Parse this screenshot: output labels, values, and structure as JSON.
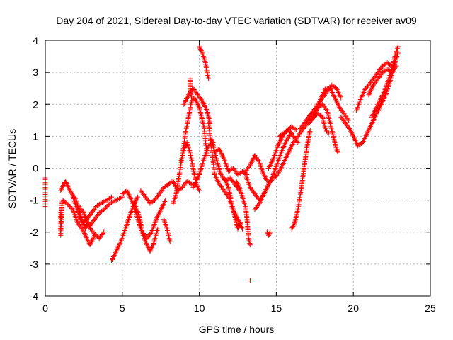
{
  "chart_data": {
    "type": "scatter",
    "title": "Day 204 of 2021, Sidereal Day-to-day VTEC variation (SDTVAR) for receiver av09",
    "xlabel": "GPS time / hours",
    "ylabel": "SDTVAR / TECUs",
    "xlim": [
      0,
      25
    ],
    "ylim": [
      -4,
      4
    ],
    "x_ticks": [
      0,
      5,
      10,
      15,
      20,
      25
    ],
    "y_ticks": [
      -4,
      -3,
      -2,
      -1,
      0,
      1,
      2,
      3,
      4
    ],
    "grid": true,
    "marker": "+",
    "colors": {
      "series": "#ff0000",
      "axis": "#000000",
      "grid": "#b0b0b0"
    },
    "series": [
      {
        "points": [
          [
            0,
            -0.3
          ],
          [
            0,
            -0.6
          ],
          [
            0,
            -1.2
          ]
        ]
      },
      {
        "points": [
          [
            1.0,
            -0.7
          ],
          [
            1.3,
            -0.4
          ],
          [
            1.6,
            -0.7
          ],
          [
            2.0,
            -1.0
          ],
          [
            2.3,
            -1.5
          ],
          [
            2.6,
            -1.9
          ],
          [
            2.8,
            -1.7
          ]
        ]
      },
      {
        "points": [
          [
            1.0,
            -1.4
          ],
          [
            1.0,
            -2.1
          ],
          [
            1.1,
            -1.0
          ],
          [
            1.4,
            -1.1
          ],
          [
            1.8,
            -1.3
          ],
          [
            2.1,
            -1.7
          ],
          [
            2.5,
            -2.0
          ],
          [
            2.9,
            -2.4
          ],
          [
            3.2,
            -2.1
          ]
        ]
      },
      {
        "points": [
          [
            2.2,
            -1.2
          ],
          [
            2.5,
            -1.4
          ],
          [
            2.8,
            -1.8
          ],
          [
            3.1,
            -2.0
          ],
          [
            3.5,
            -2.2
          ],
          [
            3.8,
            -2.0
          ]
        ]
      },
      {
        "points": [
          [
            1.8,
            -0.9
          ],
          [
            2.0,
            -1.2
          ],
          [
            2.2,
            -1.5
          ],
          [
            2.4,
            -1.7
          ],
          [
            2.7,
            -1.6
          ],
          [
            3.0,
            -1.4
          ],
          [
            3.3,
            -1.2
          ],
          [
            3.6,
            -1.1
          ],
          [
            4.0,
            -1.0
          ],
          [
            4.3,
            -0.9
          ]
        ]
      },
      {
        "points": [
          [
            2.6,
            -1.6
          ],
          [
            2.9,
            -1.8
          ],
          [
            3.2,
            -1.6
          ],
          [
            3.5,
            -1.4
          ],
          [
            3.8,
            -1.3
          ],
          [
            4.2,
            -1.1
          ],
          [
            4.6,
            -1.0
          ],
          [
            5.0,
            -0.9
          ]
        ]
      },
      {
        "points": [
          [
            4.3,
            -2.9
          ],
          [
            4.6,
            -2.6
          ],
          [
            4.9,
            -2.3
          ],
          [
            5.2,
            -1.9
          ],
          [
            5.4,
            -1.6
          ],
          [
            5.7,
            -1.2
          ],
          [
            6.0,
            -0.9
          ]
        ]
      },
      {
        "points": [
          [
            5.0,
            -0.8
          ],
          [
            5.3,
            -0.7
          ],
          [
            5.6,
            -1.0
          ],
          [
            5.9,
            -1.4
          ],
          [
            6.2,
            -1.9
          ],
          [
            6.5,
            -2.3
          ],
          [
            6.8,
            -2.6
          ],
          [
            7.0,
            -2.4
          ],
          [
            7.3,
            -1.9
          ]
        ]
      },
      {
        "points": [
          [
            5.8,
            -1.1
          ],
          [
            6.1,
            -1.5
          ],
          [
            6.3,
            -2.0
          ],
          [
            6.6,
            -2.2
          ],
          [
            6.9,
            -2.0
          ],
          [
            7.2,
            -1.6
          ],
          [
            7.5,
            -1.3
          ],
          [
            7.8,
            -1.0
          ]
        ]
      },
      {
        "points": [
          [
            6.2,
            -0.7
          ],
          [
            6.5,
            -0.9
          ],
          [
            6.8,
            -1.1
          ],
          [
            7.1,
            -1.0
          ],
          [
            7.4,
            -0.8
          ],
          [
            7.7,
            -0.6
          ],
          [
            8.0,
            -0.5
          ]
        ]
      },
      {
        "points": [
          [
            7.7,
            -1.6
          ],
          [
            7.9,
            -1.9
          ],
          [
            8.1,
            -2.3
          ]
        ]
      },
      {
        "points": [
          [
            8.0,
            -0.5
          ],
          [
            8.3,
            -0.4
          ],
          [
            8.6,
            -0.7
          ],
          [
            8.9,
            -0.6
          ],
          [
            9.2,
            -0.4
          ],
          [
            9.5,
            -0.5
          ]
        ]
      },
      {
        "points": [
          [
            8.3,
            -1.1
          ],
          [
            8.5,
            -0.8
          ],
          [
            8.7,
            -0.2
          ],
          [
            8.9,
            0.4
          ],
          [
            9.1,
            1.1
          ],
          [
            9.3,
            1.6
          ],
          [
            9.5,
            2.1
          ],
          [
            9.7,
            2.2
          ],
          [
            10.0,
            1.9
          ],
          [
            10.3,
            1.3
          ],
          [
            10.5,
            0.4
          ]
        ]
      },
      {
        "points": [
          [
            9.0,
            2.0
          ],
          [
            9.3,
            2.3
          ],
          [
            9.6,
            2.5
          ],
          [
            9.9,
            2.3
          ],
          [
            10.2,
            2.1
          ],
          [
            10.5,
            1.8
          ],
          [
            10.7,
            1.4
          ]
        ]
      },
      {
        "points": [
          [
            9.4,
            2.8
          ],
          [
            9.4,
            2.5
          ],
          [
            9.5,
            2.2
          ]
        ]
      },
      {
        "points": [
          [
            8.8,
            0.2
          ],
          [
            9.0,
            0.6
          ],
          [
            9.2,
            0.8
          ],
          [
            9.4,
            0.5
          ],
          [
            9.6,
            0.0
          ],
          [
            9.8,
            -0.5
          ],
          [
            10.0,
            -0.7
          ]
        ]
      },
      {
        "points": [
          [
            9.6,
            -0.6
          ],
          [
            9.8,
            -0.4
          ],
          [
            10.0,
            -0.2
          ],
          [
            10.3,
            0.3
          ],
          [
            10.6,
            0.7
          ],
          [
            10.9,
            0.8
          ]
        ]
      },
      {
        "points": [
          [
            10.0,
            3.8
          ],
          [
            10.2,
            3.6
          ],
          [
            10.4,
            3.3
          ],
          [
            10.5,
            3.0
          ],
          [
            10.6,
            2.8
          ]
        ]
      },
      {
        "points": [
          [
            10.6,
            1.4
          ],
          [
            10.8,
            0.6
          ],
          [
            11.0,
            -0.2
          ],
          [
            11.3,
            -0.5
          ],
          [
            11.6,
            -0.7
          ],
          [
            11.9,
            -0.9
          ],
          [
            12.2,
            -1.3
          ],
          [
            12.5,
            -1.6
          ],
          [
            12.8,
            -1.9
          ]
        ]
      },
      {
        "points": [
          [
            10.8,
            0.9
          ],
          [
            11.1,
            0.3
          ],
          [
            11.4,
            -0.2
          ],
          [
            11.7,
            -0.4
          ],
          [
            12.0,
            -0.3
          ],
          [
            12.3,
            -0.5
          ],
          [
            12.6,
            -0.7
          ]
        ]
      },
      {
        "points": [
          [
            11.0,
            0.5
          ],
          [
            11.3,
            0.6
          ],
          [
            11.6,
            0.3
          ],
          [
            11.9,
            -0.1
          ],
          [
            12.2,
            0.0
          ],
          [
            12.5,
            -0.2
          ],
          [
            12.8,
            -0.1
          ],
          [
            13.1,
            -0.2
          ]
        ]
      },
      {
        "points": [
          [
            12.4,
            -0.4
          ],
          [
            12.6,
            -0.6
          ],
          [
            12.8,
            -0.9
          ],
          [
            13.0,
            -1.2
          ],
          [
            13.1,
            -1.6
          ],
          [
            13.2,
            -2.2
          ],
          [
            13.3,
            -2.4
          ]
        ]
      },
      {
        "points": [
          [
            11.6,
            -0.3
          ],
          [
            11.9,
            -0.6
          ],
          [
            12.1,
            -1.1
          ],
          [
            12.3,
            -1.5
          ],
          [
            12.5,
            -1.9
          ],
          [
            12.7,
            -1.7
          ]
        ]
      },
      {
        "points": [
          [
            13.3,
            -3.5
          ]
        ]
      },
      {
        "points": [
          [
            13.0,
            -0.2
          ],
          [
            13.3,
            -0.6
          ],
          [
            13.6,
            -0.8
          ],
          [
            13.9,
            -1.0
          ],
          [
            14.2,
            -0.8
          ],
          [
            14.5,
            -0.5
          ],
          [
            14.8,
            -0.3
          ]
        ]
      },
      {
        "points": [
          [
            13.6,
            -1.3
          ],
          [
            13.9,
            -1.1
          ],
          [
            14.2,
            -0.8
          ],
          [
            14.5,
            -0.5
          ],
          [
            14.8,
            -0.2
          ],
          [
            15.1,
            0.2
          ],
          [
            15.4,
            0.6
          ],
          [
            15.7,
            0.9
          ],
          [
            16.0,
            1.1
          ]
        ]
      },
      {
        "points": [
          [
            13.0,
            -0.1
          ],
          [
            13.3,
            0.1
          ],
          [
            13.6,
            0.4
          ],
          [
            13.9,
            0.2
          ],
          [
            14.1,
            -0.1
          ],
          [
            14.4,
            -0.4
          ]
        ]
      },
      {
        "points": [
          [
            14.4,
            -2.0
          ],
          [
            14.5,
            -2.1
          ],
          [
            14.6,
            -2.0
          ]
        ]
      },
      {
        "points": [
          [
            14.5,
            0.0
          ],
          [
            14.8,
            0.3
          ],
          [
            15.1,
            0.7
          ],
          [
            15.4,
            1.0
          ],
          [
            15.7,
            1.2
          ],
          [
            16.0,
            1.3
          ],
          [
            16.3,
            1.2
          ]
        ]
      },
      {
        "points": [
          [
            14.9,
            -0.3
          ],
          [
            15.2,
            -0.1
          ],
          [
            15.5,
            0.2
          ],
          [
            15.8,
            0.5
          ],
          [
            16.1,
            0.8
          ],
          [
            16.4,
            1.0
          ],
          [
            16.7,
            1.2
          ],
          [
            17.0,
            1.4
          ],
          [
            17.3,
            1.7
          ]
        ]
      },
      {
        "points": [
          [
            15.2,
            1.0
          ],
          [
            15.5,
            1.1
          ],
          [
            15.8,
            1.2
          ],
          [
            16.1,
            1.0
          ],
          [
            16.4,
            0.8
          ]
        ]
      },
      {
        "points": [
          [
            16.0,
            -1.9
          ],
          [
            16.2,
            -1.7
          ],
          [
            16.4,
            -1.3
          ],
          [
            16.6,
            -0.7
          ],
          [
            16.8,
            0.0
          ],
          [
            17.0,
            0.7
          ],
          [
            17.2,
            1.2
          ]
        ]
      },
      {
        "points": [
          [
            16.5,
            1.2
          ],
          [
            16.8,
            1.4
          ],
          [
            17.1,
            1.6
          ],
          [
            17.4,
            1.8
          ],
          [
            17.7,
            2.0
          ],
          [
            18.0,
            2.2
          ],
          [
            18.3,
            2.4
          ],
          [
            18.6,
            2.6
          ],
          [
            18.9,
            2.5
          ],
          [
            19.2,
            2.2
          ]
        ]
      },
      {
        "points": [
          [
            17.4,
            1.7
          ],
          [
            17.7,
            1.9
          ],
          [
            18.0,
            2.0
          ],
          [
            18.3,
            1.8
          ],
          [
            18.5,
            1.4
          ],
          [
            18.7,
            1.0
          ],
          [
            18.9,
            0.6
          ],
          [
            19.0,
            0.5
          ]
        ]
      },
      {
        "points": [
          [
            17.3,
            1.5
          ],
          [
            17.6,
            1.8
          ],
          [
            17.9,
            2.2
          ],
          [
            18.2,
            2.5
          ],
          [
            18.5,
            2.5
          ],
          [
            18.8,
            2.2
          ],
          [
            19.1,
            1.9
          ],
          [
            19.4,
            1.7
          ],
          [
            19.7,
            1.5
          ]
        ]
      },
      {
        "points": [
          [
            17.1,
            1.4
          ],
          [
            17.4,
            1.6
          ],
          [
            17.7,
            1.7
          ],
          [
            18.0,
            1.6
          ],
          [
            18.2,
            1.2
          ],
          [
            18.4,
            1.1
          ]
        ]
      },
      {
        "points": [
          [
            19.2,
            1.6
          ],
          [
            19.5,
            1.4
          ],
          [
            19.8,
            1.2
          ],
          [
            20.1,
            0.9
          ],
          [
            20.3,
            0.7
          ],
          [
            20.6,
            0.8
          ],
          [
            20.9,
            1.1
          ],
          [
            21.2,
            1.4
          ],
          [
            21.5,
            1.7
          ],
          [
            21.8,
            2.0
          ]
        ]
      },
      {
        "points": [
          [
            20.2,
            1.8
          ],
          [
            20.5,
            2.2
          ],
          [
            20.8,
            2.5
          ],
          [
            21.0,
            2.6
          ],
          [
            21.3,
            2.8
          ],
          [
            21.6,
            3.0
          ],
          [
            21.9,
            3.2
          ],
          [
            22.2,
            3.3
          ],
          [
            22.5,
            3.2
          ]
        ]
      },
      {
        "points": [
          [
            21.2,
            1.6
          ],
          [
            21.5,
            1.9
          ],
          [
            21.8,
            2.2
          ],
          [
            22.1,
            2.5
          ],
          [
            22.3,
            2.8
          ],
          [
            22.5,
            3.1
          ],
          [
            22.7,
            3.5
          ],
          [
            22.9,
            3.8
          ]
        ]
      },
      {
        "points": [
          [
            21.0,
            2.3
          ],
          [
            21.3,
            2.6
          ],
          [
            21.6,
            2.8
          ],
          [
            21.9,
            3.0
          ],
          [
            22.2,
            3.1
          ],
          [
            22.5,
            3.0
          ],
          [
            22.8,
            3.2
          ]
        ]
      },
      {
        "points": [
          [
            21.8,
            2.0
          ],
          [
            22.1,
            2.3
          ],
          [
            22.3,
            2.6
          ],
          [
            22.5,
            2.9
          ],
          [
            22.7,
            3.3
          ],
          [
            22.9,
            3.6
          ]
        ]
      }
    ]
  }
}
